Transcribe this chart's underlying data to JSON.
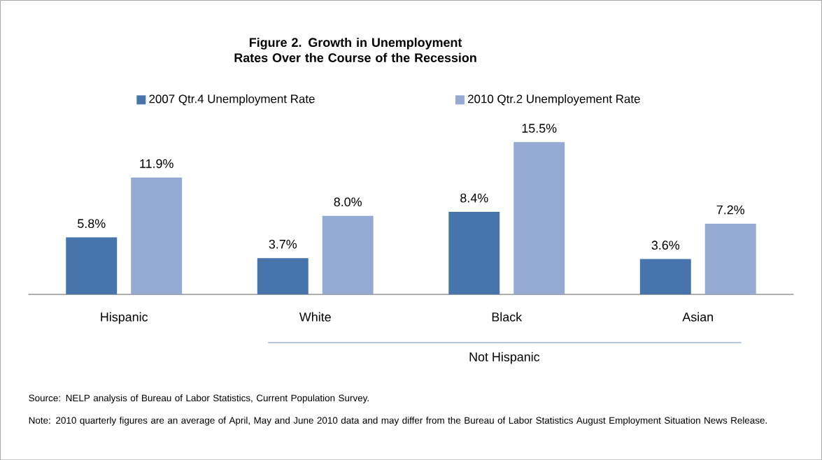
{
  "chart_data": {
    "type": "bar",
    "title": "Figure 2. Growth in Unemployment Rates Over the Course of the Recession",
    "categories": [
      "Hispanic",
      "White",
      "Black",
      "Asian"
    ],
    "series": [
      {
        "name": "2007 Qtr.4 Unemployment Rate",
        "color": "#4674ab",
        "values": [
          5.8,
          3.7,
          8.4,
          3.6
        ],
        "value_labels": [
          "5.8%",
          "3.7%",
          "8.4%",
          "3.6%"
        ]
      },
      {
        "name": "2010 Qtr.2 Unemployement Rate",
        "color": "#95aad3",
        "values": [
          11.9,
          8.0,
          15.5,
          7.2
        ],
        "value_labels": [
          "11.9%",
          "8.0%",
          "15.5%",
          "7.2%"
        ]
      }
    ],
    "legend": "top",
    "annotations": [
      "Not Hispanic",
      "Source: NELP analysis of Bureau of Labor Statistics, Current Population Survey.",
      "Note: 2010 quarterly figures are an average of April, May and June 2010 data and may differ from the Bureau of Labor Statistics August Employment Situation News Release."
    ]
  }
}
